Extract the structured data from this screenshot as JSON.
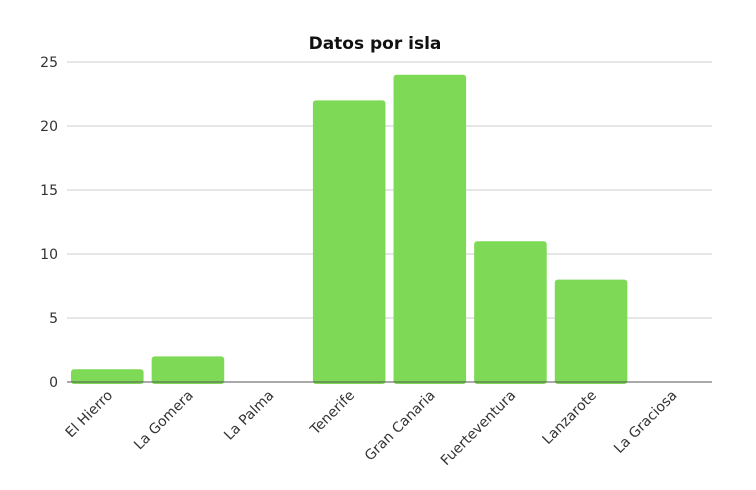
{
  "chart_data": {
    "type": "bar",
    "title": "Datos por isla",
    "xlabel": "",
    "ylabel": "",
    "categories": [
      "El Hierro",
      "La Gomera",
      "La Palma",
      "Tenerife",
      "Gran Canaria",
      "Fuerteventura",
      "Lanzarote",
      "La Graciosa"
    ],
    "values": [
      1,
      2,
      0,
      22,
      24,
      11,
      8,
      0
    ],
    "ylim": [
      0,
      25
    ],
    "yticks": [
      0,
      5,
      10,
      15,
      20,
      25
    ],
    "grid": true,
    "legend": "none",
    "bar_color": "#7ed957"
  }
}
